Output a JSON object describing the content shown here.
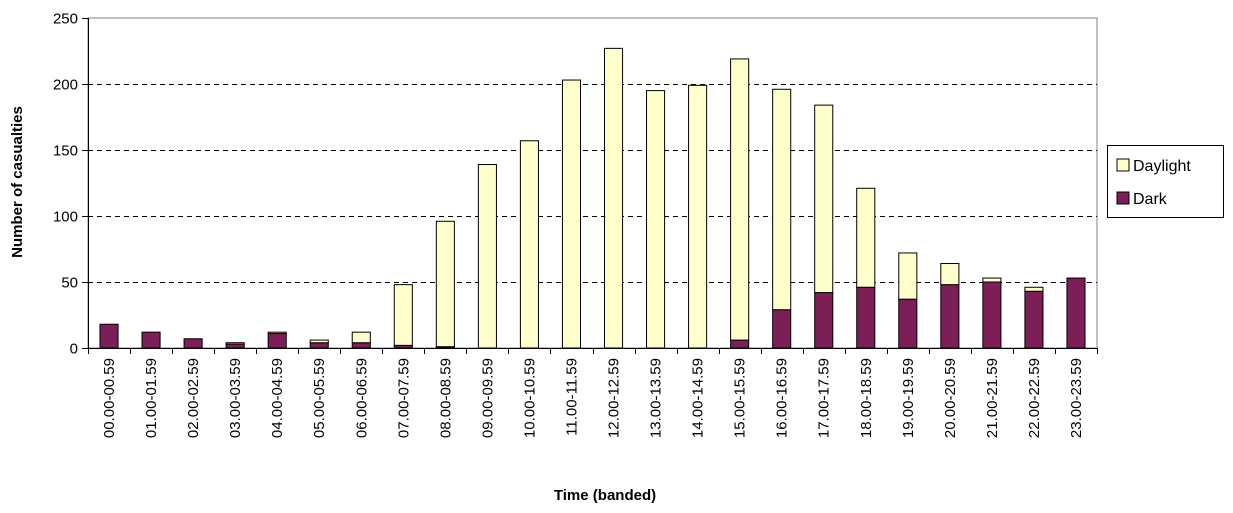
{
  "chart_data": {
    "type": "bar",
    "stacked": true,
    "title": "",
    "xlabel": "Time (banded)",
    "ylabel": "Number of casualties",
    "ylim": [
      0,
      250
    ],
    "yticks": [
      "0",
      "50",
      "100",
      "150",
      "200",
      "250"
    ],
    "grid": "horizontal dashed",
    "legend_position": "right",
    "categories": [
      "00.00-00.59",
      "01.00-01.59",
      "02.00-02.59",
      "03.00-03.59",
      "04.00-04.59",
      "05.00-05.59",
      "06.00-06.59",
      "07.00-07.59",
      "08.00-08.59",
      "09.00-09.59",
      "10.00-10.59",
      "11.00-11.59",
      "12.00-12.59",
      "13.00-13.59",
      "14.00-14.59",
      "15.00-15.59",
      "16.00-16.59",
      "17.00-17.59",
      "18.00-18.59",
      "19.00-19.59",
      "20.00-20.59",
      "21.00-21.59",
      "22.00-22.59",
      "23.00-23.59"
    ],
    "series": [
      {
        "name": "Dark",
        "color": "#7b1f56",
        "values": [
          18,
          12,
          7,
          3,
          11,
          4,
          4,
          2,
          1,
          0,
          0,
          0,
          0,
          0,
          0,
          6,
          29,
          42,
          46,
          37,
          48,
          50,
          43,
          53
        ]
      },
      {
        "name": "Daylight",
        "color": "#ffffcc",
        "values": [
          0,
          0,
          0,
          1,
          1,
          2,
          8,
          46,
          95,
          139,
          157,
          203,
          227,
          195,
          199,
          213,
          167,
          142,
          75,
          35,
          16,
          3,
          3,
          0
        ]
      }
    ],
    "legend_order": [
      "Daylight",
      "Dark"
    ]
  }
}
